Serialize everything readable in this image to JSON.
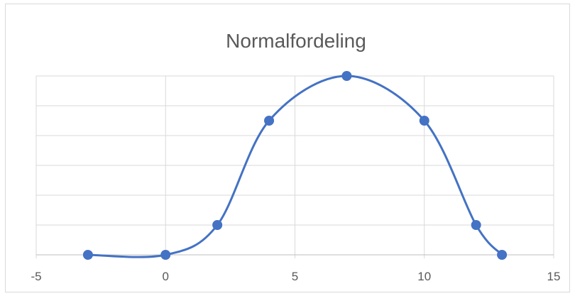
{
  "chart_data": {
    "type": "scatter",
    "title": "Normalfordeling",
    "xlabel": "",
    "ylabel": "",
    "xlim": [
      -5,
      15
    ],
    "x_ticks": [
      -5,
      0,
      5,
      10,
      15
    ],
    "ylim": [
      0,
      6
    ],
    "y_gridlines": 6,
    "smooth_line": true,
    "grid": true,
    "legend": "none",
    "series": [
      {
        "x": [
          -3,
          0,
          2,
          4,
          7,
          10,
          12,
          13
        ],
        "y": [
          0,
          0,
          1,
          4.5,
          6,
          4.5,
          1,
          0
        ]
      }
    ],
    "colors": {
      "series": "#4472c4",
      "grid": "#d9d9d9",
      "axis": "#bfbfbf",
      "text": "#595959"
    }
  }
}
